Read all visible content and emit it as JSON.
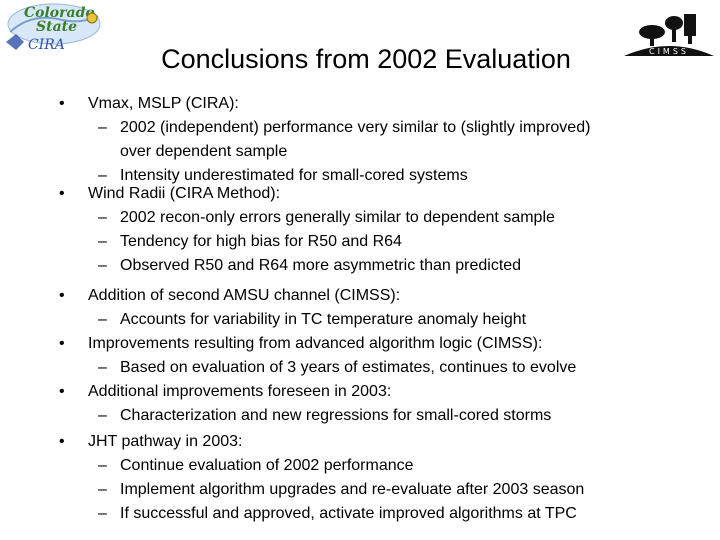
{
  "header": {
    "title": "Conclusions from 2002 Evaluation",
    "logo_left_text": [
      "Colorado",
      "State",
      "CIRA"
    ],
    "logo_right_text": "CIMSS"
  },
  "bullets": [
    {
      "text": "Vmax, MSLP (CIRA):",
      "subs": [
        {
          "text": "2002 (independent) performance very similar to (slightly improved)",
          "cont": "over dependent sample"
        },
        {
          "text": "Intensity underestimated for small-cored systems"
        }
      ]
    },
    {
      "text": "Wind Radii (CIRA Method):",
      "subs": [
        {
          "text": "2002 recon-only errors generally similar to dependent sample"
        },
        {
          "text": "Tendency for high bias for R50 and R64"
        },
        {
          "text": "Observed  R50 and R64 more asymmetric than predicted"
        }
      ]
    },
    {
      "text": "Addition of second AMSU channel (CIMSS):",
      "subs": [
        {
          "text": "Accounts for variability in TC temperature anomaly height"
        }
      ]
    },
    {
      "text": "Improvements resulting from advanced algorithm logic (CIMSS):",
      "subs": [
        {
          "text": "Based on evaluation of 3 years of estimates, continues to evolve"
        }
      ]
    },
    {
      "text": "Additional improvements foreseen in 2003:",
      "subs": [
        {
          "text": "Characterization and new regressions for small-cored storms"
        }
      ]
    },
    {
      "text": "JHT pathway in 2003:",
      "subs": [
        {
          "text": "Continue evaluation of 2002 performance"
        },
        {
          "text": "Implement algorithm upgrades and re-evaluate after 2003 season"
        },
        {
          "text": "If successful and approved, activate improved algorithms at TPC"
        }
      ]
    }
  ],
  "glyphs": {
    "bullet": "•",
    "dash": "–"
  },
  "colors": {
    "cira_green": "#3a7d2c",
    "cira_blue": "#3050a8",
    "cimss_black": "#111111"
  }
}
